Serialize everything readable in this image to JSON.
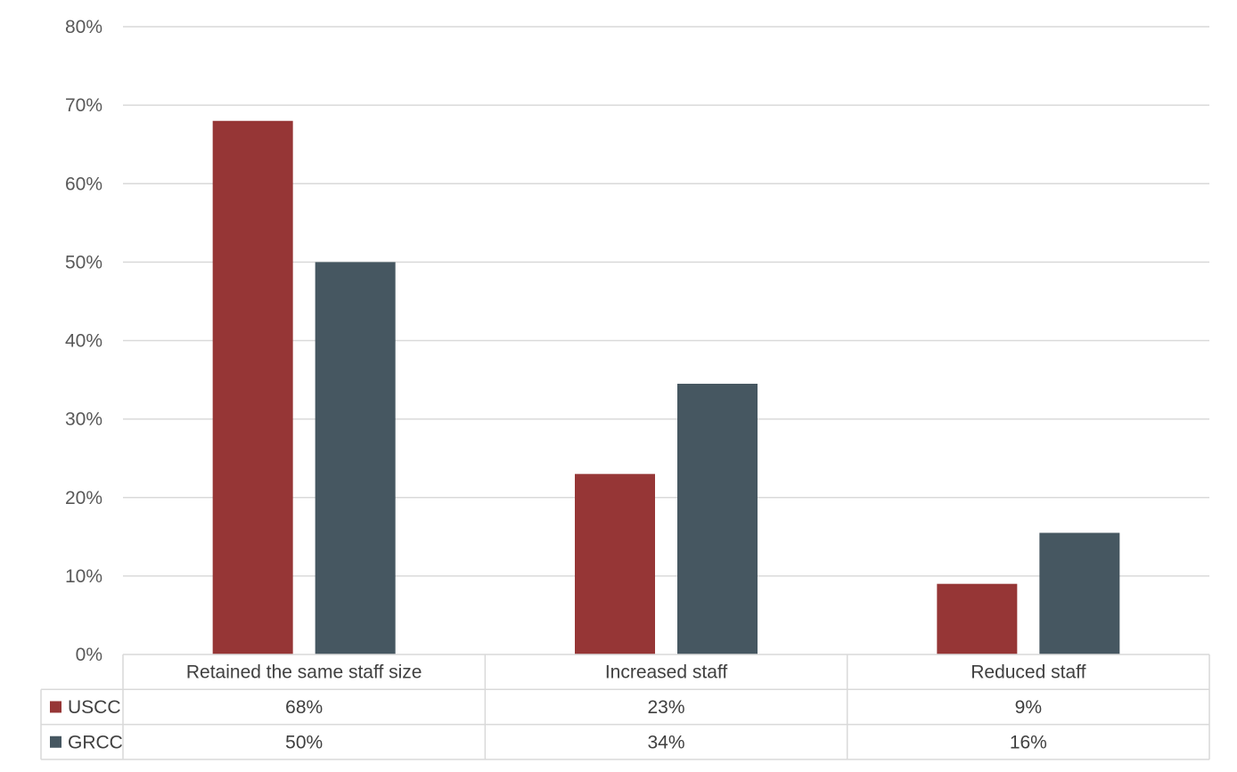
{
  "chart_data": {
    "type": "bar",
    "categories": [
      "Retained the same staff size",
      "Increased staff",
      "Reduced staff"
    ],
    "series": [
      {
        "name": "USCC",
        "values": [
          68,
          23,
          9
        ],
        "labels": [
          "68%",
          "23%",
          "9%"
        ],
        "color": "#963636"
      },
      {
        "name": "GRCC",
        "values": [
          50,
          34.5,
          15.5
        ],
        "labels": [
          "50%",
          "34%",
          "16%"
        ],
        "color": "#465761"
      }
    ],
    "y_ticks": [
      "0%",
      "10%",
      "20%",
      "30%",
      "40%",
      "50%",
      "60%",
      "70%",
      "80%"
    ],
    "ylim": [
      0,
      80
    ],
    "y_unit": "%",
    "grid": true,
    "legend": "data-table",
    "colors": {
      "gridline": "#d9d9d9",
      "table_border": "#d9d9d9",
      "text": "#595959"
    }
  }
}
